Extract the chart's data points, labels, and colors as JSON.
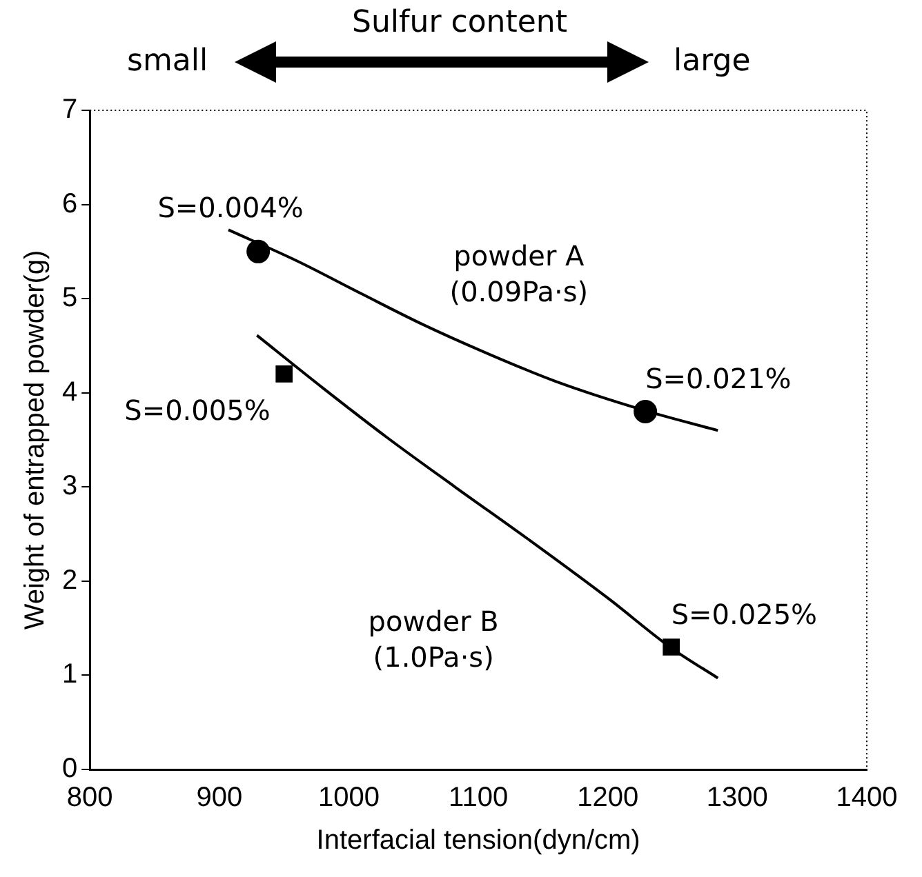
{
  "chart_data": {
    "type": "scatter",
    "xlabel": "Interfacial tension(dyn/cm)",
    "ylabel": "Weight of entrapped powder(g)",
    "xlim": [
      800,
      1400
    ],
    "xticks": [
      800,
      900,
      1000,
      1100,
      1200,
      1300,
      1400
    ],
    "ylim": [
      0,
      7
    ],
    "yticks": [
      0,
      1,
      2,
      3,
      4,
      5,
      6,
      7
    ],
    "grid": false,
    "legend": false,
    "series": [
      {
        "type": "line",
        "name": "powder A (0.09Pa·s)",
        "color": "#000000",
        "marker": "none",
        "x": [
          907,
          960,
          1010,
          1058,
          1110,
          1160,
          1229,
          1285
        ],
        "values": [
          5.73,
          5.4,
          5.05,
          4.72,
          4.4,
          4.12,
          3.81,
          3.6
        ]
      },
      {
        "type": "line",
        "name": "powder B (1.0Pa·s)",
        "color": "#000000",
        "marker": "none",
        "x": [
          929,
          980,
          1030,
          1082,
          1140,
          1200,
          1249,
          1285
        ],
        "values": [
          4.61,
          4.05,
          3.52,
          3.0,
          2.43,
          1.82,
          1.29,
          0.97
        ]
      },
      {
        "type": "scatter",
        "color": "#000000",
        "marker": "circle",
        "x": [
          930,
          1229
        ],
        "values": [
          5.5,
          3.8
        ]
      },
      {
        "type": "scatter",
        "color": "#000000",
        "marker": "square",
        "x": [
          950,
          1249
        ],
        "values": [
          4.2,
          1.3
        ]
      }
    ],
    "annotations": [
      {
        "text": "S=0.004%",
        "x": 930,
        "y": 5.5
      },
      {
        "text": "S=0.021%",
        "x": 1229,
        "y": 3.8
      },
      {
        "text": "S=0.005%",
        "x": 950,
        "y": 4.2
      },
      {
        "text": "S=0.025%",
        "x": 1249,
        "y": 1.3
      },
      "Sulfur content",
      "small",
      "large"
    ]
  }
}
